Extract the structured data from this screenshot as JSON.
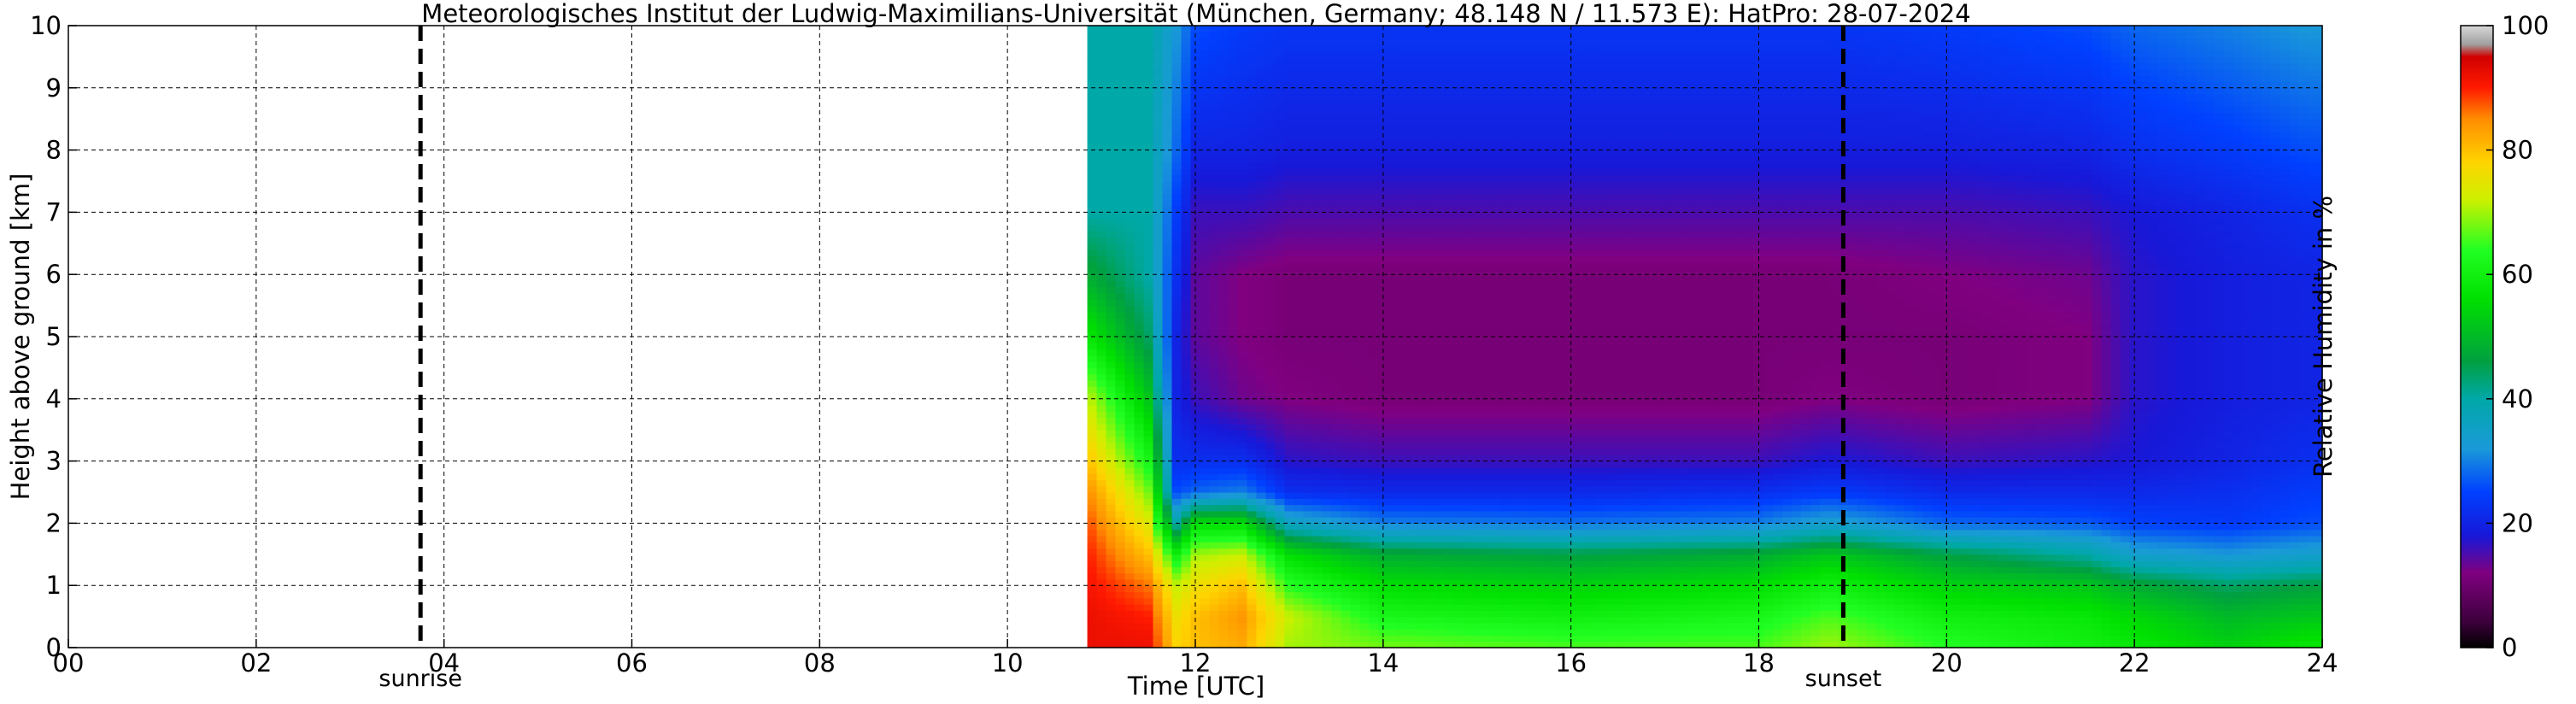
{
  "chart_data": {
    "type": "heatmap",
    "title": "Meteorologisches Institut der Ludwig-Maximilians-Universität (München, Germany; 48.148 N / 11.573 E):    HatPro: 28-07-2024",
    "xlabel": "Time [UTC]",
    "ylabel": "Height above ground [km]",
    "colorbar_label": "Relative Humidity in %",
    "xlim": [
      0,
      24
    ],
    "ylim": [
      0,
      10
    ],
    "x_ticks": [
      0,
      2,
      4,
      6,
      8,
      10,
      12,
      14,
      16,
      18,
      20,
      22,
      24
    ],
    "x_tick_labels": [
      "00",
      "02",
      "04",
      "06",
      "08",
      "10",
      "12",
      "14",
      "16",
      "18",
      "20",
      "22",
      "24"
    ],
    "y_ticks": [
      0,
      1,
      2,
      3,
      4,
      5,
      6,
      7,
      8,
      9,
      10
    ],
    "y_tick_labels": [
      "0",
      "1",
      "2",
      "3",
      "4",
      "5",
      "6",
      "7",
      "8",
      "9",
      "10"
    ],
    "colorbar_range": [
      0,
      100
    ],
    "colorbar_ticks": [
      0,
      20,
      40,
      60,
      80,
      100
    ],
    "colorbar_tick_labels": [
      "0",
      "20",
      "40",
      "60",
      "80",
      "100"
    ],
    "grid": true,
    "data_start_hour": 10.85,
    "data_end_hour": 24,
    "markers": [
      {
        "label": "sunrise",
        "hour": 3.75
      },
      {
        "label": "sunset",
        "hour": 18.9
      }
    ],
    "colormap_stops": [
      {
        "value": 0,
        "color": "#000000"
      },
      {
        "value": 4,
        "color": "#3a003a"
      },
      {
        "value": 12,
        "color": "#800080"
      },
      {
        "value": 18,
        "color": "#1818d8"
      },
      {
        "value": 25,
        "color": "#0040ff"
      },
      {
        "value": 32,
        "color": "#1a9ad8"
      },
      {
        "value": 40,
        "color": "#00a8a8"
      },
      {
        "value": 46,
        "color": "#00a040"
      },
      {
        "value": 56,
        "color": "#00e000"
      },
      {
        "value": 64,
        "color": "#22ff22"
      },
      {
        "value": 72,
        "color": "#ccf000"
      },
      {
        "value": 78,
        "color": "#ffd400"
      },
      {
        "value": 85,
        "color": "#ff8c00"
      },
      {
        "value": 90,
        "color": "#ff1a00"
      },
      {
        "value": 95,
        "color": "#d00000"
      },
      {
        "value": 97,
        "color": "#a0a0a0"
      },
      {
        "value": 100,
        "color": "#d8d8d8"
      }
    ],
    "profile_heights_km": [
      0,
      0.5,
      1,
      1.5,
      2,
      2.5,
      3,
      4,
      5,
      6,
      7,
      8,
      10
    ],
    "profiles": [
      {
        "hour": 10.85,
        "rh": [
          92,
          92,
          91,
          90,
          88,
          85,
          80,
          72,
          58,
          48,
          40,
          40,
          40
        ]
      },
      {
        "hour": 11.5,
        "rh": [
          92,
          90,
          86,
          80,
          74,
          68,
          62,
          52,
          44,
          40,
          40,
          40,
          40
        ]
      },
      {
        "hour": 11.8,
        "rh": [
          78,
          76,
          72,
          60,
          40,
          26,
          22,
          20,
          20,
          22,
          24,
          28,
          32
        ]
      },
      {
        "hour": 12.0,
        "rh": [
          80,
          80,
          76,
          70,
          56,
          28,
          22,
          16,
          14,
          14,
          16,
          20,
          26
        ]
      },
      {
        "hour": 12.5,
        "rh": [
          82,
          84,
          80,
          72,
          56,
          30,
          22,
          13,
          12,
          12,
          16,
          20,
          24
        ]
      },
      {
        "hour": 13.0,
        "rh": [
          70,
          72,
          64,
          56,
          36,
          22,
          17,
          12,
          11,
          11,
          15,
          19,
          23
        ]
      },
      {
        "hour": 14.0,
        "rh": [
          68,
          62,
          56,
          48,
          30,
          21,
          16,
          11,
          11,
          11,
          15,
          19,
          23
        ]
      },
      {
        "hour": 16.0,
        "rh": [
          66,
          60,
          54,
          46,
          29,
          21,
          16,
          11,
          11,
          11,
          15,
          19,
          23
        ]
      },
      {
        "hour": 18.0,
        "rh": [
          66,
          62,
          56,
          48,
          30,
          22,
          16,
          11,
          11,
          11,
          15,
          19,
          23
        ]
      },
      {
        "hour": 18.75,
        "rh": [
          70,
          66,
          60,
          52,
          34,
          24,
          18,
          12,
          11,
          11,
          15,
          19,
          23
        ]
      },
      {
        "hour": 20.0,
        "rh": [
          64,
          60,
          54,
          46,
          28,
          21,
          16,
          11,
          11,
          12,
          15,
          19,
          24
        ]
      },
      {
        "hour": 21.5,
        "rh": [
          60,
          58,
          52,
          40,
          27,
          21,
          17,
          12,
          12,
          13,
          16,
          20,
          26
        ]
      },
      {
        "hour": 22.0,
        "rh": [
          58,
          55,
          48,
          34,
          25,
          21,
          18,
          17,
          17,
          17,
          18,
          22,
          28
        ]
      },
      {
        "hour": 23.0,
        "rh": [
          54,
          50,
          44,
          32,
          24,
          22,
          20,
          19,
          19,
          19,
          20,
          24,
          30
        ]
      },
      {
        "hour": 23.85,
        "rh": [
          58,
          52,
          46,
          34,
          26,
          24,
          22,
          20,
          20,
          20,
          22,
          26,
          32
        ]
      }
    ]
  }
}
